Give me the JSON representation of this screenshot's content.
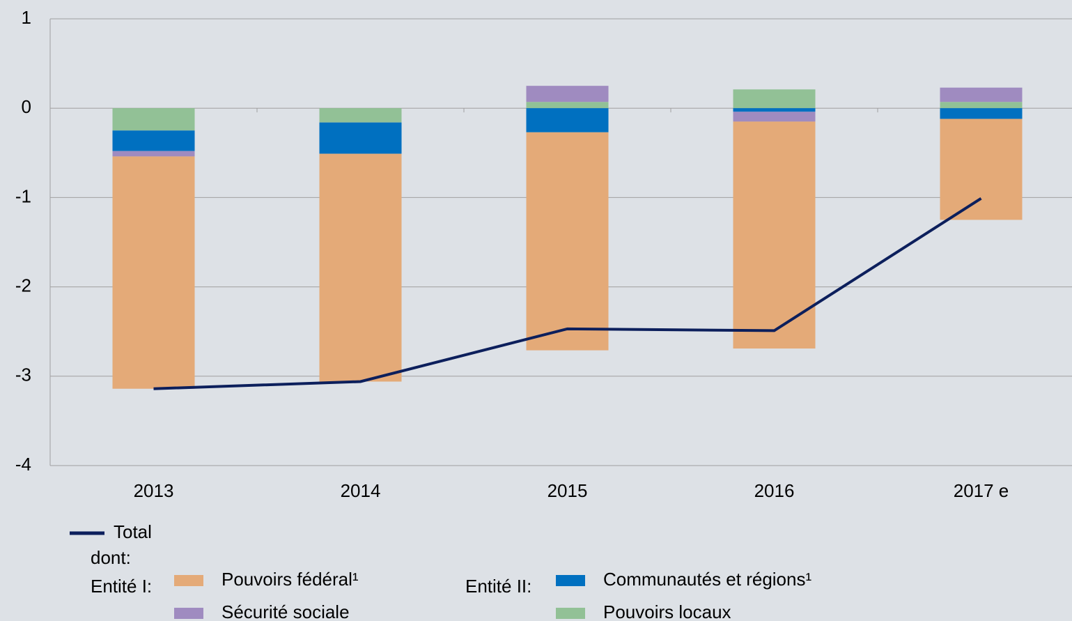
{
  "chart_data": {
    "type": "stacked_bar_line",
    "categories": [
      "2013",
      "2014",
      "2015",
      "2016",
      "2017 e"
    ],
    "series": [
      {
        "name": "Pouvoirs fédéral¹",
        "color": "#e4aa78",
        "values": [
          -2.6,
          -2.55,
          -2.44,
          -2.54,
          -1.13
        ]
      },
      {
        "name": "Sécurité sociale",
        "color": "#9f8bc0",
        "values": [
          -0.06,
          0,
          0.18,
          -0.11,
          0.16
        ]
      },
      {
        "name": "Communautés et régions¹",
        "color": "#0070c0",
        "values": [
          -0.23,
          -0.35,
          -0.27,
          -0.04,
          -0.12
        ]
      },
      {
        "name": "Pouvoirs locaux",
        "color": "#92c196",
        "values": [
          -0.25,
          -0.16,
          0.07,
          0.21,
          0.07
        ]
      }
    ],
    "line": {
      "name": "Total",
      "color": "#0c1f5c",
      "values": [
        -3.14,
        -3.06,
        -2.47,
        -2.49,
        -1.01
      ]
    },
    "legend_notes": [
      "dont:",
      "Entité I:",
      "Entité II:"
    ],
    "ylim": [
      -4,
      1
    ],
    "yticks": [
      -4,
      -3,
      -2,
      -1,
      0,
      1
    ],
    "grid": true
  }
}
